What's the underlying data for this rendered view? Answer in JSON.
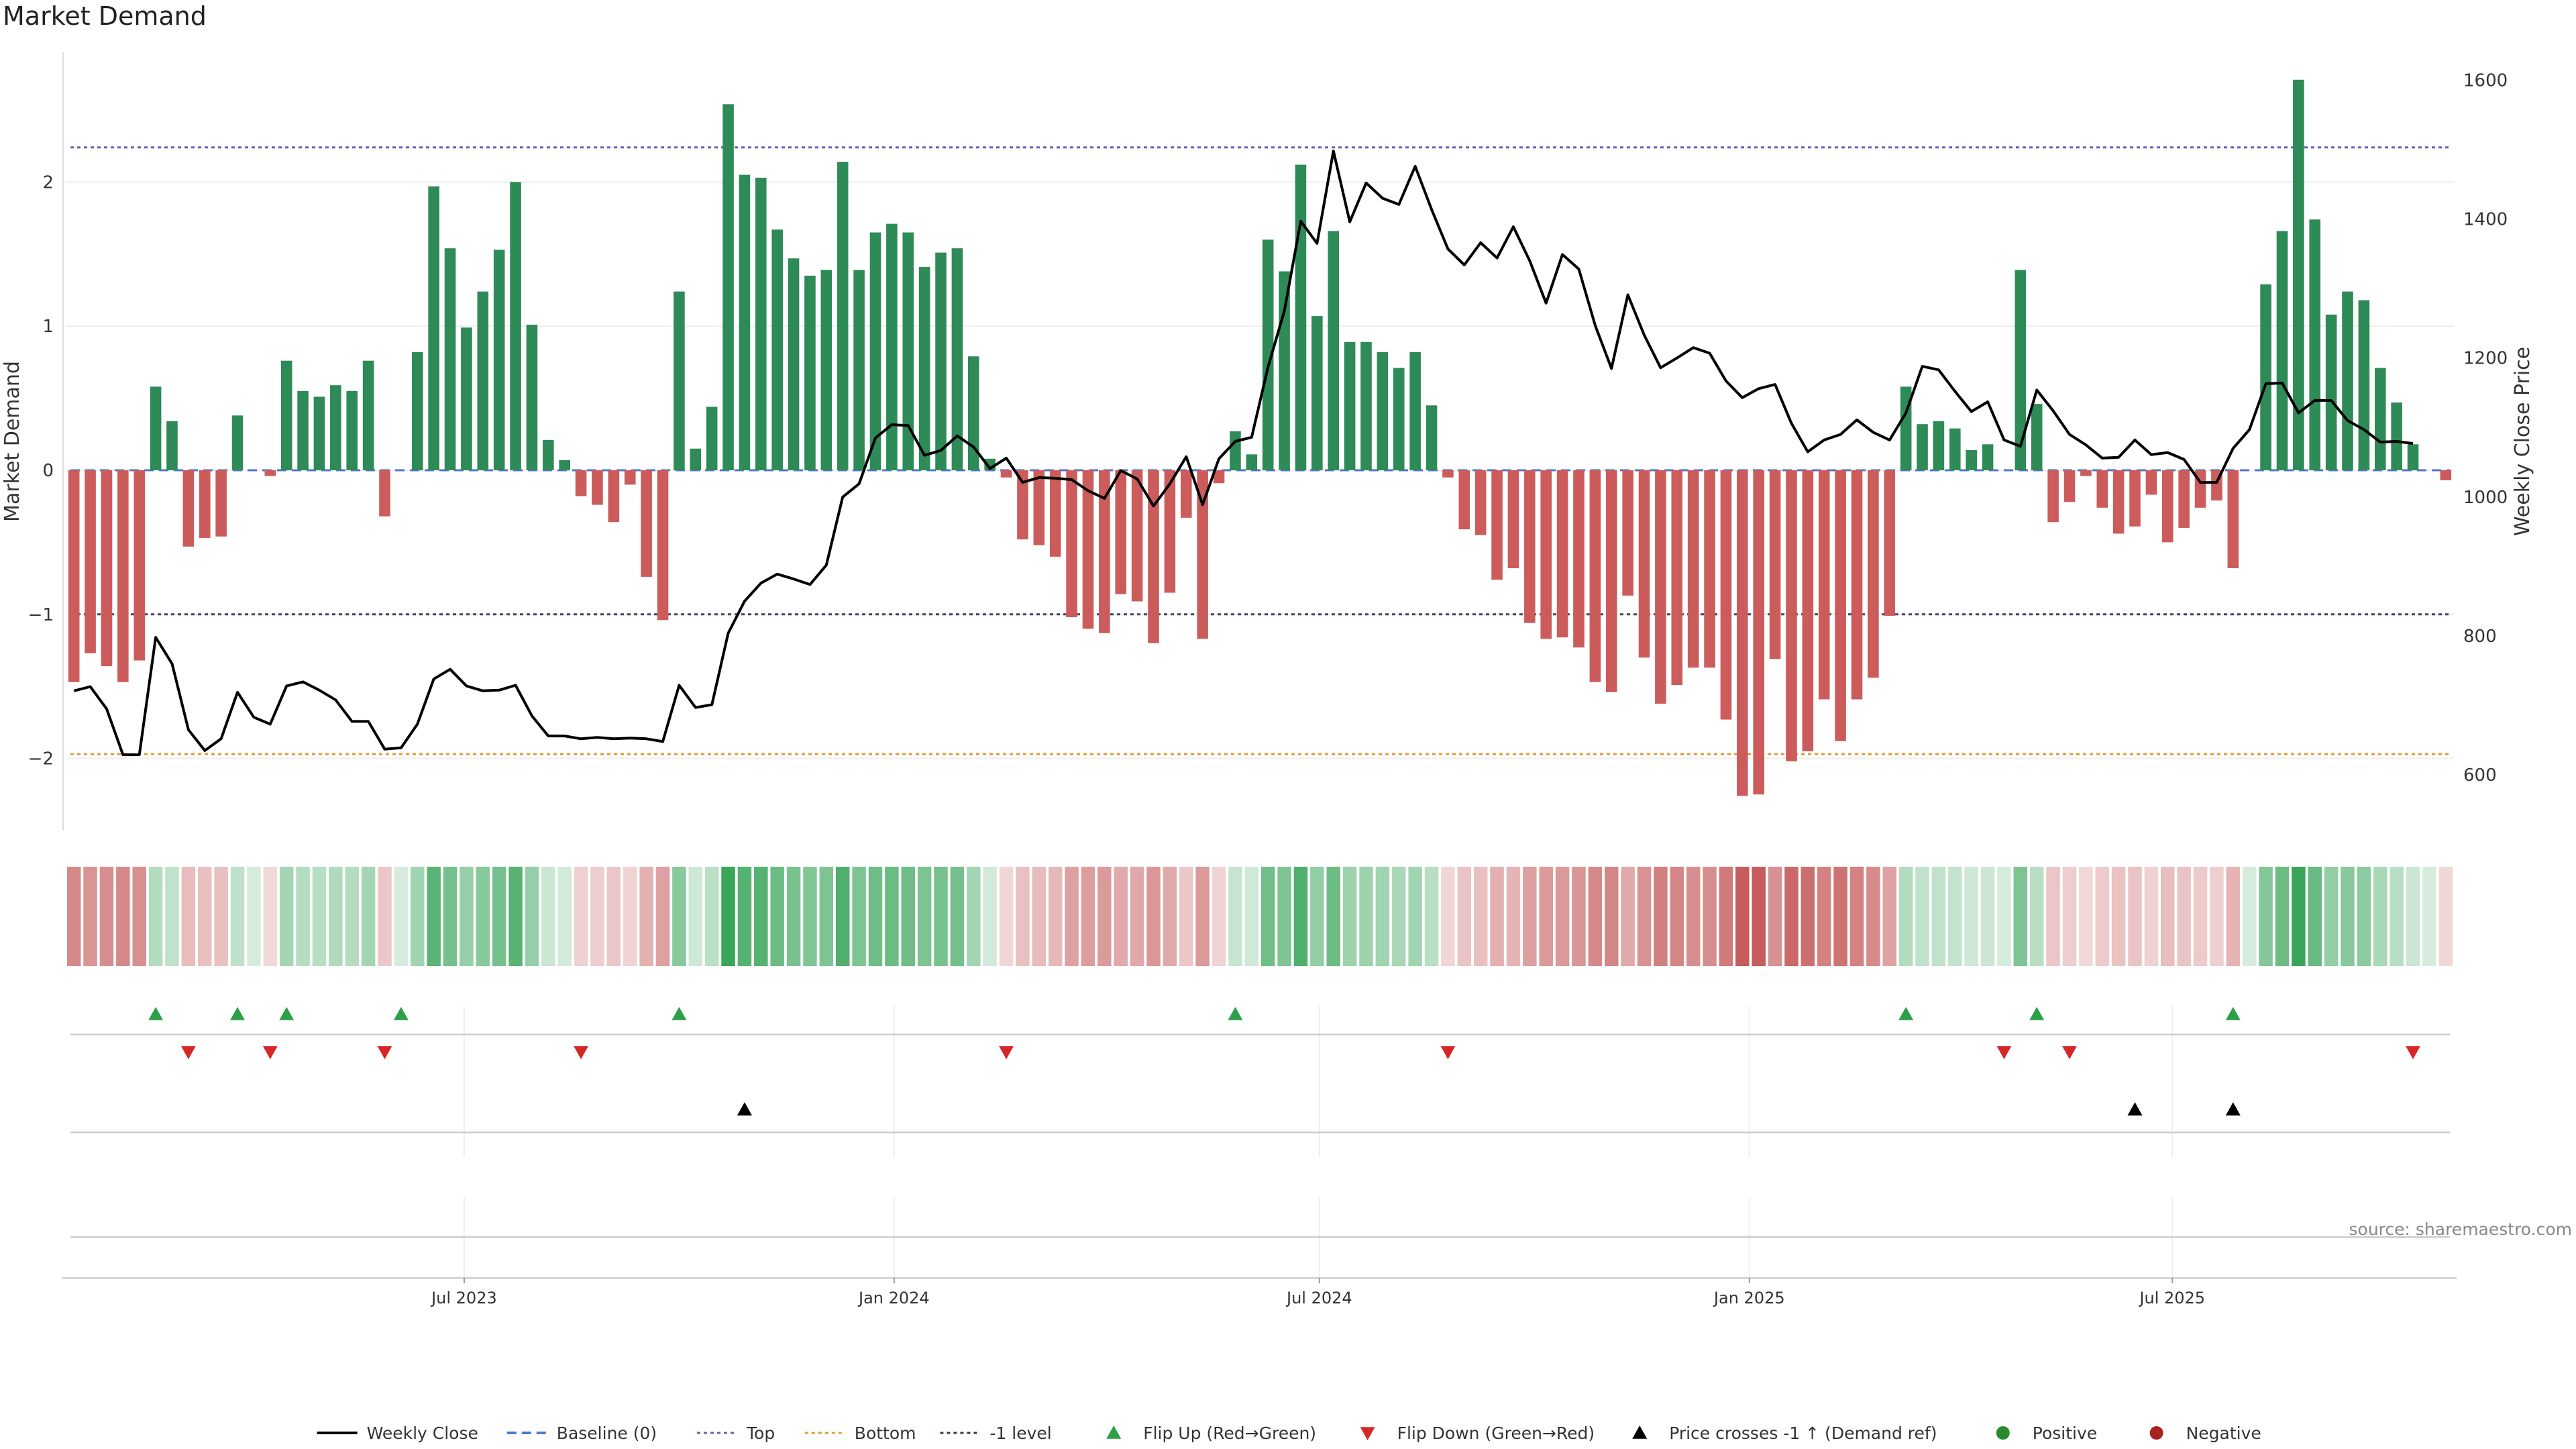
{
  "title": "Market Demand",
  "source": "source: sharemaestro.com",
  "chart_data": {
    "type": "bar",
    "start_date": "2023-01-15",
    "ylabel_left": "Market Demand",
    "ylabel_right": "Weekly Close Price",
    "ylim_left": [
      -2.5,
      2.9
    ],
    "ylim_right": [
      520,
      1640
    ],
    "yticks_left": [
      -2,
      -1,
      0,
      1,
      2
    ],
    "yticks_right": [
      600,
      800,
      1000,
      1200,
      1400,
      1600
    ],
    "xticks": [
      {
        "label": "Jul 2023",
        "date": "2023-07-01"
      },
      {
        "label": "Jan 2024",
        "date": "2024-01-01"
      },
      {
        "label": "Jul 2024",
        "date": "2024-07-01"
      },
      {
        "label": "Jan 2025",
        "date": "2025-01-01"
      },
      {
        "label": "Jul 2025",
        "date": "2025-07-01"
      }
    ],
    "reference_lines": {
      "top": 2.24,
      "bottom": -1.97,
      "minus_one": -1.0,
      "baseline": 0
    },
    "demand": [
      -1.47,
      -1.27,
      -1.36,
      -1.47,
      -1.32,
      0.58,
      0.34,
      -0.53,
      -0.47,
      -0.46,
      0.38,
      0,
      -0.04,
      0.76,
      0.55,
      0.51,
      0.59,
      0.55,
      0.76,
      -0.32,
      0,
      0.82,
      1.97,
      1.54,
      0.99,
      1.24,
      1.53,
      2.0,
      1.01,
      0.21,
      0.07,
      -0.18,
      -0.24,
      -0.36,
      -0.1,
      -0.74,
      -1.04,
      1.24,
      0.15,
      0.44,
      2.54,
      2.05,
      2.03,
      1.67,
      1.47,
      1.35,
      1.39,
      2.14,
      1.39,
      1.65,
      1.71,
      1.65,
      1.41,
      1.51,
      1.54,
      0.79,
      0.08,
      -0.05,
      -0.48,
      -0.52,
      -0.6,
      -1.02,
      -1.1,
      -1.13,
      -0.86,
      -0.91,
      -1.2,
      -0.85,
      -0.33,
      -1.17,
      -0.09,
      0.27,
      0.11,
      1.6,
      1.38,
      2.12,
      1.07,
      1.66,
      0.89,
      0.89,
      0.82,
      0.71,
      0.82,
      0.45,
      -0.05,
      -0.41,
      -0.45,
      -0.76,
      -0.68,
      -1.06,
      -1.17,
      -1.16,
      -1.23,
      -1.47,
      -1.54,
      -0.87,
      -1.3,
      -1.62,
      -1.49,
      -1.37,
      -1.37,
      -1.73,
      -2.26,
      -2.25,
      -1.31,
      -2.02,
      -1.95,
      -1.59,
      -1.88,
      -1.59,
      -1.44,
      -1.01,
      0.58,
      0.32,
      0.34,
      0.29,
      0.14,
      0.18,
      0,
      1.39,
      0.46,
      -0.36,
      -0.22,
      -0.04,
      -0.26,
      -0.44,
      -0.39,
      -0.17,
      -0.5,
      -0.4,
      -0.26,
      -0.21,
      -0.68,
      0,
      1.29,
      1.66,
      2.71,
      1.74,
      1.08,
      1.24,
      1.18,
      0.71,
      0.47,
      0.18,
      0,
      -0.07
    ],
    "close": [
      721,
      727,
      695,
      629,
      629,
      798,
      760,
      665,
      635,
      652,
      719,
      683,
      673,
      728,
      734,
      722,
      708,
      677,
      677,
      637,
      639,
      673,
      738,
      752,
      728,
      721,
      722,
      729,
      685,
      656,
      656,
      652,
      654,
      652,
      653,
      652,
      648,
      729,
      697,
      701,
      804,
      850,
      876,
      889,
      882,
      874,
      902,
      1000,
      1019,
      1085,
      1104,
      1103,
      1060,
      1067,
      1088,
      1072,
      1041,
      1056,
      1021,
      1028,
      1027,
      1025,
      1009,
      998,
      1038,
      1026,
      987,
      1019,
      1058,
      989,
      1055,
      1080,
      1086,
      1187,
      1268,
      1397,
      1365,
      1498,
      1396,
      1452,
      1430,
      1421,
      1476,
      1414,
      1357,
      1334,
      1366,
      1344,
      1389,
      1340,
      1279,
      1349,
      1328,
      1247,
      1185,
      1291,
      1233,
      1186,
      1200,
      1215,
      1207,
      1167,
      1143,
      1156,
      1162,
      1106,
      1065,
      1082,
      1090,
      1111,
      1093,
      1082,
      1121,
      1188,
      1183,
      1152,
      1123,
      1137,
      1082,
      1073,
      1154,
      1124,
      1090,
      1075,
      1056,
      1057,
      1082,
      1061,
      1064,
      1054,
      1021,
      1021,
      1070,
      1097,
      1163,
      1164,
      1121,
      1139,
      1139,
      1110,
      1097,
      1079,
      1080,
      1077
    ],
    "signals": {
      "flip_up": [
        5,
        10,
        13,
        20,
        37,
        71,
        112,
        120,
        132
      ],
      "flip_down": [
        7,
        12,
        19,
        31,
        57,
        84,
        118,
        122,
        143
      ],
      "price_cross": [
        41,
        126,
        132
      ]
    },
    "legend": [
      {
        "label": "Weekly Close",
        "kind": "line",
        "color": "#000000"
      },
      {
        "label": "Baseline (0)",
        "kind": "dash",
        "color": "#4c78c8"
      },
      {
        "label": "Top",
        "kind": "dot",
        "color": "#6a5fb0"
      },
      {
        "label": "Bottom",
        "kind": "dot",
        "color": "#e09a30"
      },
      {
        "label": "-1 level",
        "kind": "dot",
        "color": "#333355"
      },
      {
        "label": "Flip Up (Red→Green)",
        "kind": "tri-up",
        "color": "#2ca048"
      },
      {
        "label": "Flip Down (Green→Red)",
        "kind": "tri-down",
        "color": "#d62728"
      },
      {
        "label": "Price crosses -1 ↑ (Demand ref)",
        "kind": "tri-up",
        "color": "#000000"
      },
      {
        "label": "Positive",
        "kind": "dot-marker",
        "color": "#2a8a2a"
      },
      {
        "label": "Negative",
        "kind": "dot-marker",
        "color": "#a82222"
      }
    ],
    "colors": {
      "positive_bar": "#2e8a57",
      "negative_bar": "#cc5c5c",
      "price": "#000000"
    },
    "legend_position": "bottom-center",
    "grid": true
  }
}
